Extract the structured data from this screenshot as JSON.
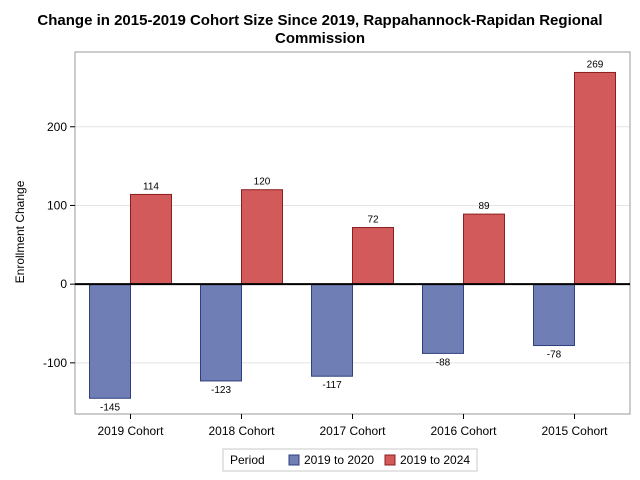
{
  "chart_data": {
    "type": "bar",
    "title": "Change in 2015-2019 Cohort Size Since 2019, Rappahannock-Rapidan Regional Commission",
    "title_lines": [
      "Change in 2015-2019 Cohort Size Since 2019, Rappahannock-Rapidan Regional",
      "Commission"
    ],
    "xlabel": "",
    "ylabel": "Enrollment Change",
    "categories": [
      "2019 Cohort",
      "2018 Cohort",
      "2017 Cohort",
      "2016 Cohort",
      "2015 Cohort"
    ],
    "series": [
      {
        "name": "2019 to 2020",
        "color": "#6f7eb5",
        "stroke": "#2f3f7f",
        "values": [
          -145,
          -123,
          -117,
          -88,
          -78
        ]
      },
      {
        "name": "2019 to 2024",
        "color": "#d25a5a",
        "stroke": "#8b1f1f",
        "values": [
          114,
          120,
          72,
          89,
          269
        ]
      }
    ],
    "ylim": [
      -165,
      295
    ],
    "yticks": [
      -100,
      0,
      100,
      200
    ],
    "grid": true,
    "legend": {
      "title": "Period",
      "placement": "bottom"
    }
  }
}
